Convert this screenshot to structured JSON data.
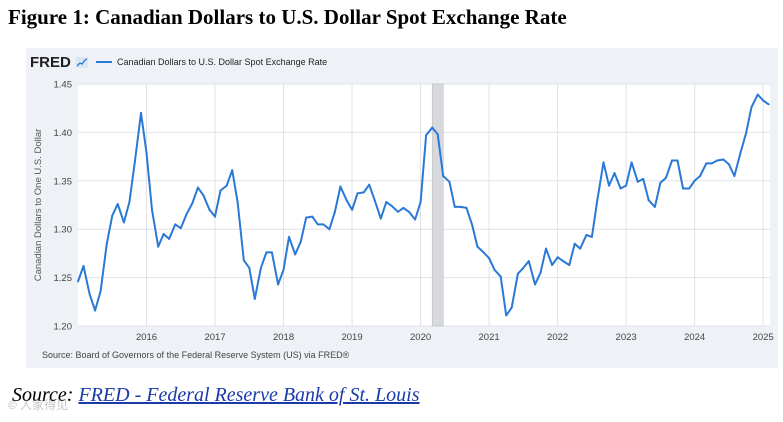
{
  "figure_title": "Figure 1: Canadian Dollars to U.S. Dollar Spot Exchange Rate",
  "fred_logo": "FRED",
  "source_note": "Source: Board of Governors of the Federal Reserve System (US) via FRED®",
  "bottom_source": {
    "prefix": "Source: ",
    "link_text": "FRED - Federal Reserve Bank of St. Louis"
  },
  "watermark": "© 人家得见",
  "colors": {
    "series": "#2a79d6",
    "recession": "#d8d9dc",
    "panel": "#eef1f6",
    "grid": "#dfe2e8"
  },
  "chart_data": {
    "type": "line",
    "title": "",
    "xlabel": "",
    "ylabel": "Canadian Dollars to One U.S. Dollar",
    "ylim": [
      1.2,
      1.45
    ],
    "xlim": [
      2015.0,
      2025.1
    ],
    "yticks": [
      "1.20",
      "1.25",
      "1.30",
      "1.35",
      "1.40",
      "1.45"
    ],
    "xticks": [
      "2016",
      "2017",
      "2018",
      "2019",
      "2020",
      "2021",
      "2022",
      "2023",
      "2024",
      "2025"
    ],
    "grid": true,
    "legend_position": "top-left",
    "recession_shading": [
      [
        2020.17,
        2020.33
      ]
    ],
    "series": [
      {
        "name": "Canadian Dollars to U.S. Dollar Spot Exchange Rate",
        "x": [
          2015.0,
          2015.08,
          2015.17,
          2015.25,
          2015.33,
          2015.42,
          2015.5,
          2015.58,
          2015.67,
          2015.75,
          2015.83,
          2015.92,
          2016.0,
          2016.08,
          2016.17,
          2016.25,
          2016.33,
          2016.42,
          2016.5,
          2016.58,
          2016.67,
          2016.75,
          2016.83,
          2016.92,
          2017.0,
          2017.08,
          2017.17,
          2017.25,
          2017.33,
          2017.42,
          2017.5,
          2017.58,
          2017.67,
          2017.75,
          2017.83,
          2017.92,
          2018.0,
          2018.08,
          2018.17,
          2018.25,
          2018.33,
          2018.42,
          2018.5,
          2018.58,
          2018.67,
          2018.75,
          2018.83,
          2018.92,
          2019.0,
          2019.08,
          2019.17,
          2019.25,
          2019.33,
          2019.42,
          2019.5,
          2019.58,
          2019.67,
          2019.75,
          2019.83,
          2019.92,
          2020.0,
          2020.08,
          2020.17,
          2020.25,
          2020.33,
          2020.42,
          2020.5,
          2020.58,
          2020.67,
          2020.75,
          2020.83,
          2020.92,
          2021.0,
          2021.08,
          2021.17,
          2021.25,
          2021.33,
          2021.42,
          2021.5,
          2021.58,
          2021.67,
          2021.75,
          2021.83,
          2021.92,
          2022.0,
          2022.08,
          2022.17,
          2022.25,
          2022.33,
          2022.42,
          2022.5,
          2022.58,
          2022.67,
          2022.75,
          2022.83,
          2022.92,
          2023.0,
          2023.08,
          2023.17,
          2023.25,
          2023.33,
          2023.42,
          2023.5,
          2023.58,
          2023.67,
          2023.75,
          2023.83,
          2023.92,
          2024.0,
          2024.08,
          2024.17,
          2024.25,
          2024.33,
          2024.42,
          2024.5,
          2024.58,
          2024.67,
          2024.75,
          2024.83,
          2024.92,
          2025.0,
          2025.08
        ],
        "y": [
          1.246,
          1.262,
          1.233,
          1.216,
          1.236,
          1.285,
          1.314,
          1.326,
          1.307,
          1.328,
          1.37,
          1.42,
          1.379,
          1.32,
          1.282,
          1.295,
          1.29,
          1.305,
          1.301,
          1.315,
          1.327,
          1.343,
          1.335,
          1.32,
          1.313,
          1.34,
          1.345,
          1.361,
          1.328,
          1.268,
          1.26,
          1.228,
          1.26,
          1.276,
          1.276,
          1.243,
          1.258,
          1.292,
          1.274,
          1.287,
          1.312,
          1.313,
          1.305,
          1.305,
          1.3,
          1.318,
          1.344,
          1.33,
          1.32,
          1.337,
          1.338,
          1.346,
          1.33,
          1.311,
          1.328,
          1.324,
          1.318,
          1.322,
          1.318,
          1.31,
          1.328,
          1.397,
          1.405,
          1.398,
          1.355,
          1.349,
          1.323,
          1.323,
          1.322,
          1.305,
          1.282,
          1.276,
          1.27,
          1.258,
          1.251,
          1.211,
          1.219,
          1.254,
          1.26,
          1.267,
          1.243,
          1.255,
          1.28,
          1.263,
          1.271,
          1.267,
          1.263,
          1.285,
          1.28,
          1.294,
          1.292,
          1.33,
          1.369,
          1.345,
          1.358,
          1.342,
          1.345,
          1.369,
          1.349,
          1.352,
          1.33,
          1.323,
          1.348,
          1.353,
          1.371,
          1.371,
          1.342,
          1.342,
          1.35,
          1.355,
          1.368,
          1.368,
          1.371,
          1.372,
          1.367,
          1.355,
          1.379,
          1.399,
          1.426,
          1.439,
          1.433,
          1.429
        ]
      }
    ]
  }
}
